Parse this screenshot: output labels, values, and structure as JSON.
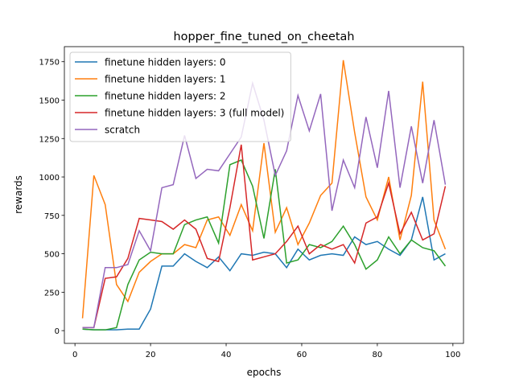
{
  "chart_data": {
    "type": "line",
    "title": "hopper_fine_tuned_on_cheetah",
    "x_label": "epochs",
    "y_label": "rewards",
    "x": [
      2,
      5,
      8,
      11,
      14,
      17,
      20,
      23,
      26,
      29,
      32,
      35,
      38,
      41,
      44,
      47,
      50,
      53,
      56,
      59,
      62,
      65,
      68,
      71,
      74,
      77,
      80,
      83,
      86,
      89,
      92,
      95,
      98
    ],
    "series": [
      {
        "name": "finetune hidden layers: 0",
        "color": "#1f77b4",
        "values": [
          10,
          5,
          5,
          5,
          10,
          10,
          140,
          420,
          420,
          500,
          450,
          410,
          480,
          390,
          500,
          490,
          510,
          500,
          410,
          530,
          460,
          490,
          500,
          490,
          610,
          560,
          580,
          530,
          490,
          590,
          870,
          460,
          500
        ]
      },
      {
        "name": "finetune hidden layers: 1",
        "color": "#ff7f0e",
        "values": [
          80,
          1010,
          820,
          300,
          190,
          380,
          450,
          500,
          500,
          560,
          540,
          720,
          740,
          620,
          820,
          650,
          1220,
          640,
          800,
          560,
          700,
          880,
          960,
          1760,
          1290,
          870,
          720,
          1000,
          590,
          880,
          1620,
          720,
          530
        ]
      },
      {
        "name": "finetune hidden layers: 2",
        "color": "#2ca02c",
        "values": [
          10,
          5,
          5,
          20,
          300,
          460,
          510,
          500,
          500,
          690,
          720,
          740,
          570,
          1080,
          1110,
          940,
          600,
          1050,
          440,
          460,
          560,
          540,
          580,
          680,
          560,
          400,
          460,
          610,
          500,
          590,
          540,
          520,
          420
        ]
      },
      {
        "name": "finetune hidden layers: 3 (full model)",
        "color": "#d62728",
        "values": [
          20,
          20,
          340,
          350,
          470,
          730,
          720,
          710,
          660,
          720,
          660,
          470,
          450,
          800,
          1210,
          460,
          480,
          500,
          580,
          680,
          500,
          560,
          530,
          560,
          440,
          700,
          740,
          960,
          630,
          770,
          590,
          630,
          940
        ]
      },
      {
        "name": "scratch",
        "color": "#9467bd",
        "values": [
          20,
          20,
          410,
          410,
          430,
          650,
          520,
          930,
          950,
          1270,
          990,
          1050,
          1040,
          1150,
          1260,
          1610,
          1370,
          1010,
          1170,
          1530,
          1300,
          1540,
          780,
          1110,
          930,
          1390,
          1060,
          1560,
          930,
          1330,
          960,
          1370,
          950
        ]
      }
    ],
    "xlim": [
      -2.8,
      102.8
    ],
    "ylim": [
      -83,
      1848
    ],
    "xticks": [
      0,
      20,
      40,
      60,
      80,
      100
    ],
    "yticks": [
      0,
      250,
      500,
      750,
      1000,
      1250,
      1500,
      1750
    ],
    "legend": "upper left"
  }
}
